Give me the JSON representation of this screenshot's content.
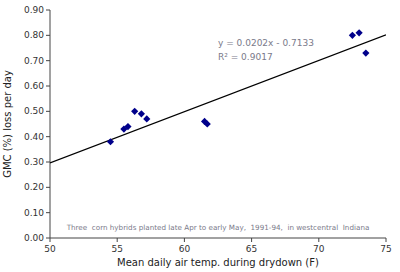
{
  "chart_data": {
    "type": "scatter",
    "x_label": "Mean daily air temp. during drydown (F)",
    "y_label": "GMC (%) loss per day",
    "series": [
      {
        "type": "scatter",
        "marker": "diamond",
        "color": "#00008B",
        "x": [
          54.5,
          55.5,
          55.8,
          56.3,
          56.8,
          57.2,
          61.5,
          61.7,
          72.5,
          73.0,
          73.5
        ],
        "values": [
          0.38,
          0.43,
          0.44,
          0.5,
          0.49,
          0.47,
          0.46,
          0.45,
          0.8,
          0.81,
          0.73
        ]
      },
      {
        "type": "line",
        "color": "#000000",
        "x": [
          50,
          75
        ],
        "values": [
          0.2967,
          0.8017
        ]
      }
    ],
    "annotations": [
      {
        "text": "y = 0.0202x - 0.7133",
        "color": "#7a7a8a"
      },
      {
        "text": "R² = 0.9017",
        "color": "#7a7a8a"
      },
      {
        "text": "Three  corn hybrids planted late Apr to early May,  1991-94,  in westcentral  Indiana",
        "color": "#7a7a8a"
      }
    ],
    "xlim": [
      50,
      75
    ],
    "ylim": [
      0.0,
      0.9
    ],
    "xticks": [
      50,
      55,
      60,
      65,
      70,
      75
    ],
    "yticks": [
      {
        "value": 0.0,
        "label": "0.00"
      },
      {
        "value": 0.1,
        "label": "0.10"
      },
      {
        "value": 0.2,
        "label": "0.20"
      },
      {
        "value": 0.3,
        "label": "0.30"
      },
      {
        "value": 0.4,
        "label": "0.40"
      },
      {
        "value": 0.5,
        "label": "0.50"
      },
      {
        "value": 0.6,
        "label": "0.60"
      },
      {
        "value": 0.7,
        "label": "0.70"
      },
      {
        "value": 0.8,
        "label": "0.80"
      },
      {
        "value": 0.9,
        "label": "0.90"
      }
    ],
    "grid": false
  }
}
